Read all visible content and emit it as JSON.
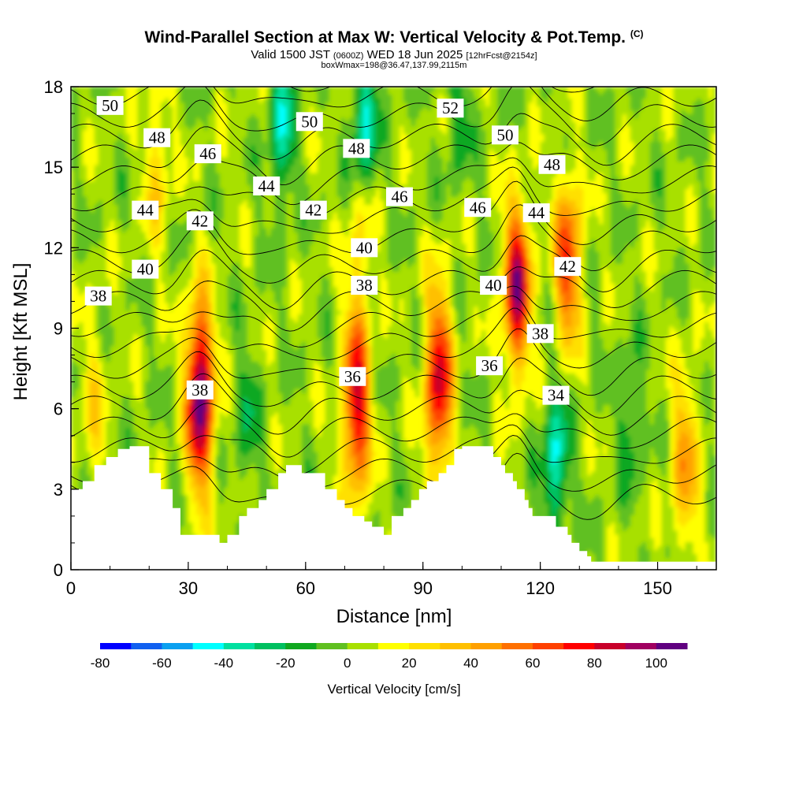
{
  "header": {
    "title": "Wind-Parallel Section at Max W: Vertical Velocity & Pot.Temp.",
    "copyright": "(C)",
    "valid_prefix": "Valid 1500 JST",
    "valid_utc": "(0600Z)",
    "valid_date": "WED 18 Jun 2025",
    "forecast": "[12hrFcst@2154z]",
    "box_info": "boxWmax=198@36.47,137.99,2115m"
  },
  "chart_data": {
    "type": "heatmap",
    "title": "Wind-Parallel Section at Max W: Vertical Velocity & Pot.Temp.",
    "xlabel": "Distance [nm]",
    "ylabel": "Height [Kft MSL]",
    "xlim": [
      0,
      165
    ],
    "ylim": [
      0,
      18
    ],
    "xticks": [
      0,
      30,
      60,
      90,
      120,
      150
    ],
    "yticks": [
      0,
      3,
      6,
      9,
      12,
      15,
      18
    ],
    "grid": false,
    "colorbar": {
      "label": "Vertical Velocity [cm/s]",
      "levels": [
        -80,
        -70,
        -60,
        -50,
        -40,
        -30,
        -20,
        -10,
        0,
        10,
        20,
        30,
        40,
        50,
        60,
        70,
        80,
        90,
        100,
        110
      ],
      "tick_labels": [
        "-80",
        "-60",
        "-40",
        "-20",
        "0",
        "20",
        "40",
        "60",
        "80",
        "100"
      ],
      "colors": [
        "#0000ff",
        "#1060f0",
        "#0aa0f0",
        "#00ffff",
        "#00e0a0",
        "#00c060",
        "#10a820",
        "#60c020",
        "#a8e000",
        "#ffff00",
        "#ffe000",
        "#ffc000",
        "#ffa000",
        "#ff7000",
        "#ff4000",
        "#ff0000",
        "#c8002a",
        "#a00060",
        "#600080"
      ]
    },
    "vertical_velocity_cores": [
      {
        "x": 33,
        "y": 6.5,
        "peak_cm_s": 105
      },
      {
        "x": 73,
        "y": 6.2,
        "peak_cm_s": 80
      },
      {
        "x": 94,
        "y": 7.0,
        "peak_cm_s": 80
      },
      {
        "x": 114,
        "y": 10.5,
        "peak_cm_s": 90
      },
      {
        "x": 127,
        "y": 11.5,
        "peak_cm_s": 65
      },
      {
        "x": 22,
        "y": 15.0,
        "peak_cm_s": 25
      },
      {
        "x": 74,
        "y": 12.5,
        "peak_cm_s": 20
      },
      {
        "x": 157,
        "y": 4.0,
        "peak_cm_s": 40
      },
      {
        "x": 6,
        "y": 6.0,
        "peak_cm_s": 20
      }
    ],
    "downdraft_cores": [
      {
        "x": 54,
        "y": 16.5,
        "min_cm_s": -40
      },
      {
        "x": 75,
        "y": 16.5,
        "min_cm_s": -45
      },
      {
        "x": 124,
        "y": 4.0,
        "min_cm_s": -45
      },
      {
        "x": 99,
        "y": 17.0,
        "min_cm_s": -20
      },
      {
        "x": 45,
        "y": 5.5,
        "min_cm_s": -20
      },
      {
        "x": 143,
        "y": 5.5,
        "min_cm_s": -20
      }
    ],
    "theta_contours": {
      "units": "Pot.Temp. (labels as printed)",
      "levels": [
        34,
        35,
        36,
        37,
        38,
        39,
        40,
        41,
        42,
        43,
        44,
        45,
        46,
        47,
        48,
        49,
        50,
        51,
        52,
        53,
        54
      ],
      "labels": [
        {
          "text": "50",
          "x": 10,
          "y": 17.3
        },
        {
          "text": "48",
          "x": 22,
          "y": 16.1
        },
        {
          "text": "46",
          "x": 35,
          "y": 15.5
        },
        {
          "text": "44",
          "x": 19,
          "y": 13.4
        },
        {
          "text": "42",
          "x": 33,
          "y": 13.0
        },
        {
          "text": "40",
          "x": 19,
          "y": 11.2
        },
        {
          "text": "38",
          "x": 7,
          "y": 10.2
        },
        {
          "text": "44",
          "x": 50,
          "y": 14.3
        },
        {
          "text": "50",
          "x": 61,
          "y": 16.7
        },
        {
          "text": "48",
          "x": 73,
          "y": 15.7
        },
        {
          "text": "46",
          "x": 84,
          "y": 13.9
        },
        {
          "text": "42",
          "x": 62,
          "y": 13.4
        },
        {
          "text": "40",
          "x": 75,
          "y": 12.0
        },
        {
          "text": "38",
          "x": 75,
          "y": 10.6
        },
        {
          "text": "52",
          "x": 97,
          "y": 17.2
        },
        {
          "text": "50",
          "x": 111,
          "y": 16.2
        },
        {
          "text": "48",
          "x": 123,
          "y": 15.1
        },
        {
          "text": "46",
          "x": 104,
          "y": 13.5
        },
        {
          "text": "44",
          "x": 119,
          "y": 13.3
        },
        {
          "text": "42",
          "x": 127,
          "y": 11.3
        },
        {
          "text": "40",
          "x": 108,
          "y": 10.6
        },
        {
          "text": "38",
          "x": 120,
          "y": 8.8
        },
        {
          "text": "36",
          "x": 72,
          "y": 7.2
        },
        {
          "text": "36",
          "x": 107,
          "y": 7.6
        },
        {
          "text": "38",
          "x": 33,
          "y": 6.7
        },
        {
          "text": "34",
          "x": 124,
          "y": 6.5
        }
      ]
    },
    "terrain": {
      "x": [
        0,
        3,
        3,
        6,
        6,
        9,
        9,
        12,
        12,
        15,
        15,
        17,
        17,
        20,
        20,
        23,
        23,
        26,
        26,
        28,
        28,
        30,
        30,
        33,
        33,
        35,
        35,
        38,
        38,
        40,
        40,
        43,
        43,
        45,
        45,
        48,
        48,
        50,
        50,
        53,
        53,
        55,
        55,
        59,
        59,
        65,
        65,
        68,
        68,
        70,
        70,
        72,
        72,
        75,
        75,
        77,
        77,
        80,
        80,
        82,
        82,
        85,
        85,
        87,
        87,
        89,
        89,
        91,
        91,
        94,
        94,
        96,
        96,
        98,
        98,
        100,
        100,
        102,
        102,
        108,
        108,
        110,
        110,
        111,
        111,
        113,
        113,
        114,
        114,
        116,
        116,
        117,
        117,
        118,
        118,
        119,
        119,
        121,
        121,
        122,
        122,
        124,
        124,
        125,
        125,
        127,
        127,
        128,
        128,
        130,
        130,
        132,
        132,
        133,
        133,
        135,
        135,
        137,
        137,
        139,
        139,
        141,
        141,
        143,
        143,
        145,
        145,
        147,
        147,
        150,
        150,
        165
      ],
      "y": [
        3.0,
        3.0,
        3.3,
        3.3,
        3.9,
        3.9,
        4.2,
        4.2,
        4.5,
        4.5,
        4.6,
        4.6,
        4.6,
        4.6,
        3.6,
        3.6,
        3.0,
        3.0,
        2.3,
        2.3,
        1.3,
        1.3,
        1.3,
        1.3,
        1.3,
        1.3,
        1.3,
        1.3,
        1.0,
        1.0,
        1.3,
        1.3,
        2.0,
        2.0,
        2.3,
        2.3,
        2.6,
        2.6,
        3.0,
        3.0,
        3.6,
        3.6,
        3.9,
        3.9,
        3.6,
        3.6,
        3.0,
        3.0,
        2.6,
        2.6,
        2.3,
        2.3,
        2.0,
        2.0,
        1.8,
        1.8,
        1.6,
        1.6,
        1.3,
        1.3,
        2.0,
        2.0,
        2.3,
        2.3,
        2.6,
        2.6,
        3.0,
        3.0,
        3.3,
        3.3,
        3.6,
        3.6,
        3.9,
        3.9,
        4.5,
        4.5,
        4.6,
        4.6,
        4.6,
        4.6,
        4.2,
        4.2,
        3.9,
        3.9,
        3.6,
        3.6,
        3.3,
        3.3,
        3.0,
        3.0,
        2.6,
        2.6,
        2.3,
        2.3,
        2.0,
        2.0,
        2.0,
        2.0,
        2.0,
        2.0,
        2.0,
        2.0,
        1.6,
        1.6,
        1.6,
        1.6,
        1.3,
        1.3,
        1.0,
        1.0,
        0.7,
        0.7,
        0.5,
        0.5,
        0.3,
        0.3,
        0.3,
        0.3,
        0.3,
        0.3,
        0.3,
        0.3,
        0.3,
        0.3,
        0.3,
        0.3,
        0.3,
        0.3,
        0.3,
        0.3,
        0.3,
        0.3
      ]
    }
  }
}
